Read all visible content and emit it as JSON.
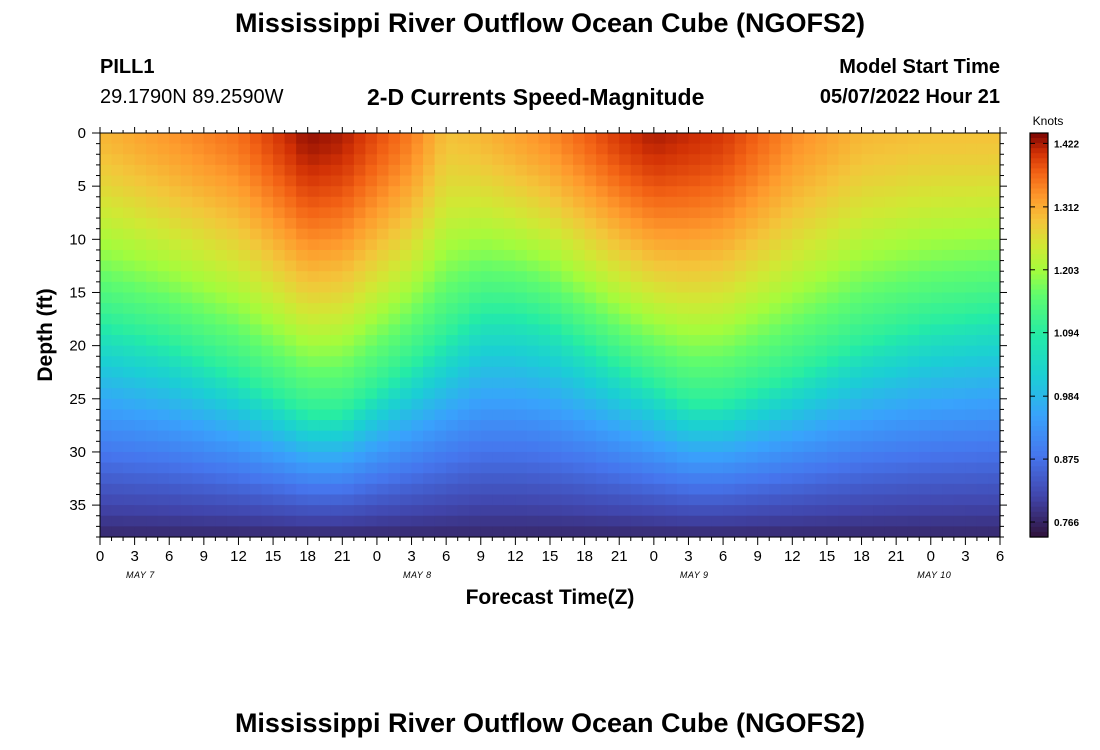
{
  "header": {
    "title": "Mississippi River Outflow Ocean Cube (NGOFS2)",
    "station_id": "PILL1",
    "coordinates": "29.1790N  89.2590W",
    "subtitle": "2-D Currents Speed-Magnitude",
    "model_start_label": "Model Start Time",
    "model_start_value": "05/07/2022 Hour 21"
  },
  "footer": {
    "title": "Mississippi River Outflow Ocean Cube (NGOFS2)"
  },
  "chart_data": {
    "type": "heatmap",
    "title": "2-D Currents Speed-Magnitude",
    "xlabel": "Forecast Time(Z)",
    "ylabel": "Depth (ft)",
    "x_ticks": [
      "0",
      "3",
      "6",
      "9",
      "12",
      "15",
      "18",
      "21",
      "0",
      "3",
      "6",
      "9",
      "12",
      "15",
      "18",
      "21",
      "0",
      "3",
      "6",
      "9",
      "12",
      "15",
      "18",
      "21",
      "0",
      "3",
      "6"
    ],
    "x_range_hours": [
      0,
      78
    ],
    "day_labels": [
      {
        "label": "MAY 7",
        "hour": 3.5
      },
      {
        "label": "MAY 8",
        "hour": 27.5
      },
      {
        "label": "MAY 9",
        "hour": 51.5
      },
      {
        "label": "MAY 10",
        "hour": 72.3
      }
    ],
    "y_ticks": [
      0,
      5,
      10,
      15,
      20,
      25,
      30,
      35
    ],
    "ylim": [
      0,
      38
    ],
    "y_inverted": true,
    "colorbar": {
      "label": "Knots",
      "ticks": [
        "1.422",
        "1.312",
        "1.203",
        "1.094",
        "0.984",
        "0.875",
        "0.766"
      ],
      "range": [
        0.74,
        1.44
      ],
      "colormap": "turbo"
    },
    "surface_speed_hourly": [
      {
        "hour": 0,
        "value": 1.3
      },
      {
        "hour": 6,
        "value": 1.33
      },
      {
        "hour": 12,
        "value": 1.36
      },
      {
        "hour": 18,
        "value": 1.43
      },
      {
        "hour": 21,
        "value": 1.42
      },
      {
        "hour": 27,
        "value": 1.35
      },
      {
        "hour": 30,
        "value": 1.29
      },
      {
        "hour": 33,
        "value": 1.3
      },
      {
        "hour": 39,
        "value": 1.34
      },
      {
        "hour": 45,
        "value": 1.4
      },
      {
        "hour": 48,
        "value": 1.42
      },
      {
        "hour": 54,
        "value": 1.4
      },
      {
        "hour": 60,
        "value": 1.34
      },
      {
        "hour": 66,
        "value": 1.3
      },
      {
        "hour": 72,
        "value": 1.29
      },
      {
        "hour": 78,
        "value": 1.29
      }
    ],
    "depth_of_1094_contour_ft": [
      {
        "hour": 0,
        "value": 18
      },
      {
        "hour": 6,
        "value": 20
      },
      {
        "hour": 12,
        "value": 23
      },
      {
        "hour": 18,
        "value": 26.5
      },
      {
        "hour": 21,
        "value": 26.5
      },
      {
        "hour": 27,
        "value": 22
      },
      {
        "hour": 33,
        "value": 17
      },
      {
        "hour": 36,
        "value": 17
      },
      {
        "hour": 39,
        "value": 18
      },
      {
        "hour": 45,
        "value": 22
      },
      {
        "hour": 51,
        "value": 25.5
      },
      {
        "hour": 54,
        "value": 25.5
      },
      {
        "hour": 60,
        "value": 23
      },
      {
        "hour": 66,
        "value": 20
      },
      {
        "hour": 72,
        "value": 18
      },
      {
        "hour": 78,
        "value": 17
      }
    ],
    "bottom_speed": 0.77
  }
}
